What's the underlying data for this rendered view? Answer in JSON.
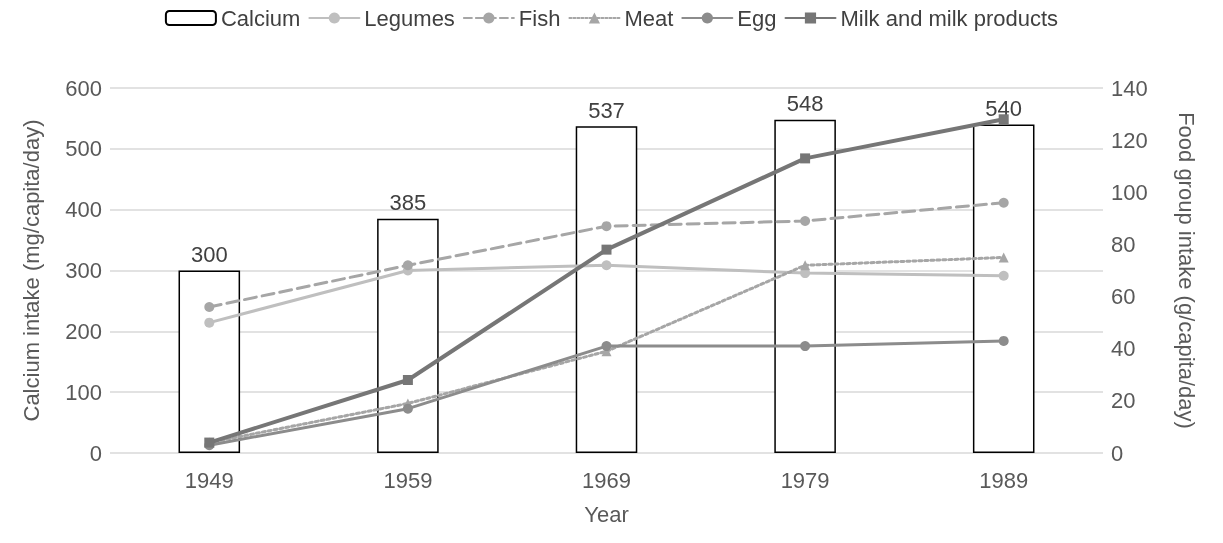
{
  "chart_data": {
    "type": "bar",
    "xlabel": "Year",
    "ylabel": "Calcium intake (mg/capita/day)",
    "y2label": "Food group intake (g/capita/day)",
    "categories": [
      "1949",
      "1959",
      "1969",
      "1979",
      "1989"
    ],
    "ylim": [
      0,
      600
    ],
    "yticks": [
      0,
      100,
      200,
      300,
      400,
      500,
      600
    ],
    "y2lim": [
      0,
      140
    ],
    "y2ticks": [
      0,
      20,
      40,
      60,
      80,
      100,
      120,
      140
    ],
    "grid": "y",
    "legend": "top",
    "series": [
      {
        "name": "Calcium",
        "color": "#ffffff",
        "values": [
          300,
          385,
          537,
          548,
          540
        ],
        "data_labels": true
      },
      {
        "name": "Legumes",
        "type": "line",
        "axis": "y2",
        "color": "#bfbfbf",
        "marker": "circle",
        "line_style": "solid",
        "values": [
          50,
          70,
          72,
          69,
          68
        ]
      },
      {
        "name": "Fish",
        "type": "line",
        "axis": "y2",
        "color": "#a6a6a6",
        "marker": "circle",
        "line_style": "dashed",
        "values": [
          56,
          72,
          87,
          89,
          96
        ]
      },
      {
        "name": "Meat",
        "type": "line",
        "axis": "y2",
        "color": "#a6a6a6",
        "marker": "triangle",
        "line_style": "dotted",
        "values": [
          4,
          19,
          39,
          72,
          75
        ]
      },
      {
        "name": "Egg",
        "type": "line",
        "axis": "y2",
        "color": "#8c8c8c",
        "marker": "circle",
        "line_style": "solid",
        "values": [
          3,
          17,
          41,
          41,
          43
        ]
      },
      {
        "name": "Milk and milk products",
        "type": "line",
        "axis": "y2",
        "color": "#767676",
        "marker": "square",
        "line_style": "solid",
        "values": [
          4,
          28,
          78,
          113,
          128
        ]
      }
    ]
  }
}
